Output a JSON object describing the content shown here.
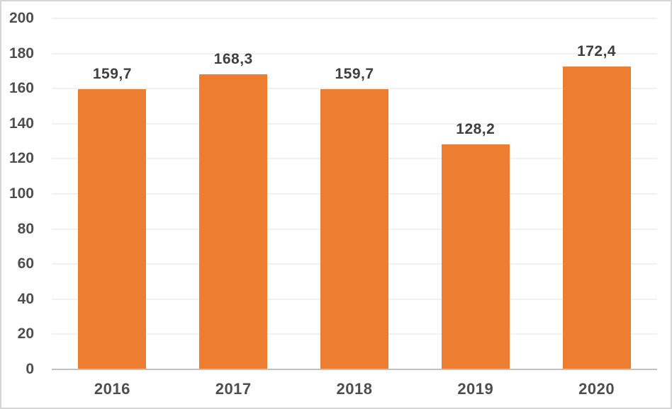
{
  "chart_data": {
    "type": "bar",
    "title": "",
    "categories": [
      "2016",
      "2017",
      "2018",
      "2019",
      "2020"
    ],
    "values": [
      159.7,
      168.3,
      159.7,
      128.2,
      172.4
    ],
    "value_labels": [
      "159,7",
      "168,3",
      "159,7",
      "128,2",
      "172,4"
    ],
    "xlabel": "",
    "ylabel": "",
    "ylim": [
      0,
      200
    ],
    "ytick_step": 20,
    "ytick_labels": [
      "0",
      "20",
      "40",
      "60",
      "80",
      "100",
      "120",
      "140",
      "160",
      "180",
      "200"
    ],
    "grid": true,
    "legend": "none",
    "decimal_separator": ",",
    "colors": {
      "bar": "#ED7D31",
      "value_label": "#3F3F3F",
      "tick_label": "#4E4E4E",
      "gridline": "#F1F1F1",
      "axis_line": "#C1C1C1",
      "chart_border": "#D6D6D6",
      "background": "#FFFFFF"
    }
  }
}
